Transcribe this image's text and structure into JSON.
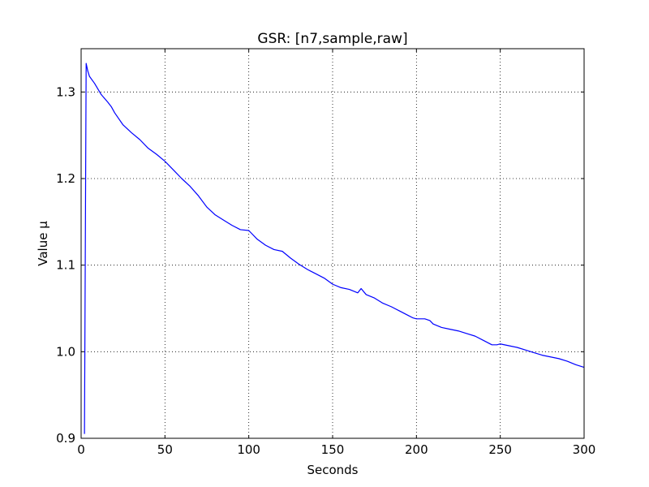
{
  "chart_data": {
    "type": "line",
    "title": "GSR: [n7,sample,raw]",
    "xlabel": "Seconds",
    "ylabel": "Value µ",
    "xlim": [
      0,
      300
    ],
    "ylim": [
      0.9,
      1.35
    ],
    "xticks": [
      0,
      50,
      100,
      150,
      200,
      250,
      300
    ],
    "xtick_labels": [
      "0",
      "50",
      "100",
      "150",
      "200",
      "250",
      "300"
    ],
    "yticks": [
      0.9,
      1.0,
      1.1,
      1.2,
      1.3
    ],
    "ytick_labels": [
      "0.9",
      "1.0",
      "1.1",
      "1.2",
      "1.3"
    ],
    "grid": true,
    "line_color": "#0000ff",
    "series": [
      {
        "name": "GSR",
        "x": [
          2,
          3,
          4,
          5,
          8,
          12,
          16,
          18,
          20,
          25,
          30,
          35,
          40,
          45,
          50,
          55,
          60,
          65,
          70,
          75,
          80,
          85,
          90,
          95,
          100,
          102,
          105,
          110,
          115,
          120,
          125,
          130,
          135,
          140,
          145,
          150,
          155,
          160,
          165,
          167,
          170,
          175,
          180,
          185,
          190,
          195,
          198,
          200,
          205,
          208,
          210,
          215,
          220,
          225,
          230,
          235,
          240,
          245,
          248,
          250,
          255,
          260,
          265,
          270,
          275,
          280,
          285,
          290,
          295,
          300
        ],
        "y": [
          0.905,
          1.333,
          1.324,
          1.318,
          1.31,
          1.297,
          1.288,
          1.283,
          1.276,
          1.262,
          1.253,
          1.245,
          1.235,
          1.228,
          1.22,
          1.21,
          1.2,
          1.191,
          1.18,
          1.167,
          1.158,
          1.152,
          1.146,
          1.141,
          1.14,
          1.136,
          1.13,
          1.123,
          1.118,
          1.116,
          1.108,
          1.101,
          1.095,
          1.09,
          1.085,
          1.078,
          1.074,
          1.072,
          1.068,
          1.073,
          1.066,
          1.062,
          1.056,
          1.052,
          1.047,
          1.042,
          1.039,
          1.038,
          1.038,
          1.036,
          1.032,
          1.028,
          1.026,
          1.024,
          1.021,
          1.018,
          1.013,
          1.008,
          1.008,
          1.009,
          1.007,
          1.005,
          1.002,
          0.999,
          0.996,
          0.994,
          0.992,
          0.989,
          0.985,
          0.982
        ]
      }
    ]
  }
}
